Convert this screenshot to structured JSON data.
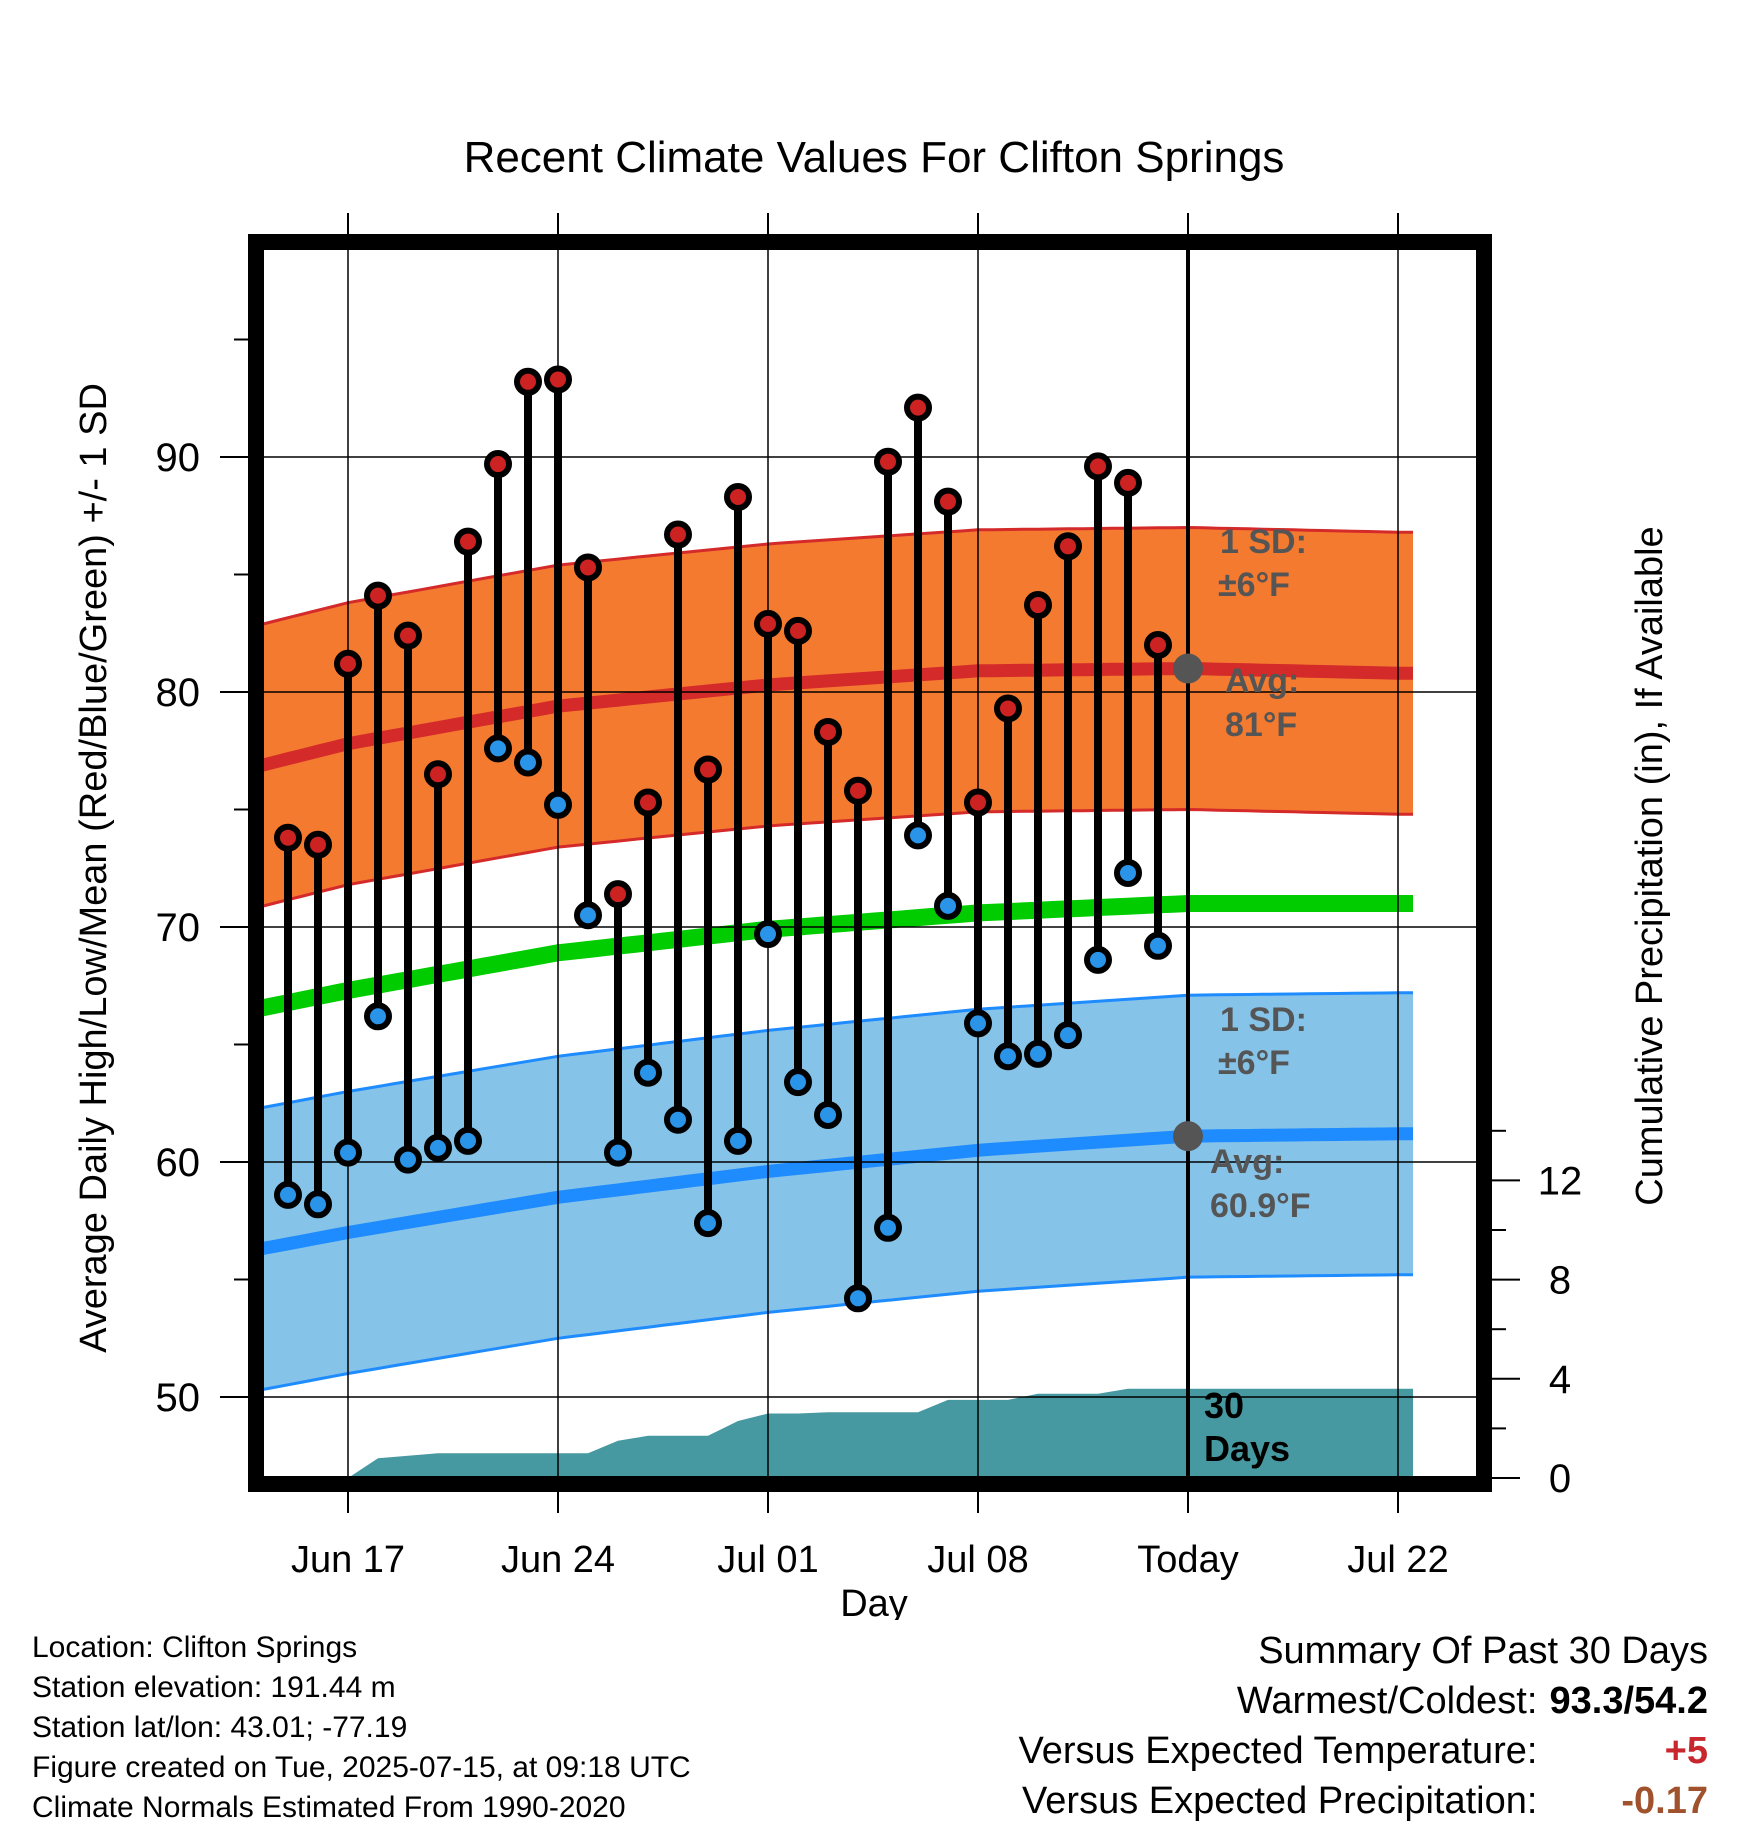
{
  "chart_data": {
    "type": "line",
    "title": "Recent Climate Values For Clifton Springs",
    "xlabel": "Day",
    "ylabel": "Average Daily High/Low/Mean (Red/Blue/Green) +/- 1 SD",
    "y2label": "Cumulative Precipitation (in), If Available",
    "x_day_range": [
      -33.5,
      7.5
    ],
    "ylim": [
      46,
      98
    ],
    "y2lim": [
      0,
      24
    ],
    "x_ticks": [
      {
        "day": -28,
        "label": "Jun 17"
      },
      {
        "day": -21,
        "label": "Jun 24"
      },
      {
        "day": -14,
        "label": "Jul 01"
      },
      {
        "day": -7,
        "label": "Jul 08"
      },
      {
        "day": 0,
        "label": "Today"
      },
      {
        "day": 7,
        "label": "Jul 22"
      }
    ],
    "y_ticks": [
      50,
      60,
      70,
      80,
      90
    ],
    "y2_ticks": [
      0,
      4,
      8,
      12
    ],
    "grid": true,
    "normals": {
      "days": [
        -33,
        -28,
        -21,
        -14,
        -7,
        0,
        7
      ],
      "high_mean": [
        76.2,
        77.8,
        79.4,
        80.3,
        80.9,
        81.0,
        80.8
      ],
      "high_sd": 6,
      "mean": [
        66.0,
        67.3,
        68.9,
        69.9,
        70.6,
        71.0,
        71.0
      ],
      "low_mean": [
        55.8,
        57.0,
        58.5,
        59.6,
        60.5,
        61.1,
        61.2
      ],
      "low_sd": 6
    },
    "series": [
      {
        "name": "High",
        "days": [
          -30,
          -29,
          -28,
          -27,
          -26,
          -25,
          -24,
          -23,
          -22,
          -21,
          -20,
          -19,
          -18,
          -17,
          -16,
          -15,
          -14,
          -13,
          -12,
          -11,
          -10,
          -9,
          -8,
          -7,
          -6,
          -5,
          -4,
          -3,
          -2,
          -1
        ],
        "values": [
          73.8,
          73.5,
          81.2,
          84.1,
          82.4,
          76.5,
          86.4,
          89.7,
          93.2,
          93.3,
          85.3,
          71.4,
          75.3,
          86.7,
          76.7,
          88.3,
          82.9,
          82.6,
          78.3,
          75.8,
          89.8,
          92.1,
          88.1,
          75.3,
          79.3,
          83.7,
          86.2,
          89.6,
          88.9,
          82.0
        ]
      },
      {
        "name": "Low",
        "days": [
          -30,
          -29,
          -28,
          -27,
          -26,
          -25,
          -24,
          -23,
          -22,
          -21,
          -20,
          -19,
          -18,
          -17,
          -16,
          -15,
          -14,
          -13,
          -12,
          -11,
          -10,
          -9,
          -8,
          -7,
          -6,
          -5,
          -4,
          -3,
          -2,
          -1
        ],
        "values": [
          58.6,
          58.2,
          60.4,
          66.2,
          60.1,
          60.6,
          60.9,
          77.6,
          77.0,
          75.2,
          70.5,
          60.4,
          63.8,
          61.8,
          57.4,
          60.9,
          69.7,
          63.4,
          62.0,
          54.2,
          57.2,
          73.9,
          70.9,
          65.9,
          64.5,
          64.6,
          65.4,
          68.6,
          72.3,
          69.2
        ]
      }
    ],
    "precipitation": {
      "days": [
        -28,
        -27,
        -26,
        -25,
        -24,
        -23,
        -22,
        -21,
        -20,
        -19,
        -18,
        -17,
        -16,
        -15,
        -14,
        -13,
        -12,
        -11,
        -10,
        -9,
        -8,
        -7,
        -6,
        -5,
        -4,
        -3,
        -2,
        -1,
        0,
        7.5
      ],
      "cumulative": [
        0,
        0.8,
        0.9,
        1.0,
        1.0,
        1.0,
        1.0,
        1.0,
        1.0,
        1.5,
        1.7,
        1.7,
        1.7,
        2.3,
        2.6,
        2.6,
        2.65,
        2.65,
        2.65,
        2.65,
        3.15,
        3.15,
        3.15,
        3.4,
        3.4,
        3.4,
        3.6,
        3.6,
        3.6,
        3.6
      ]
    },
    "annotations": {
      "high_sd_label": "1 SD:",
      "high_sd_value": "±6°F",
      "high_avg_label": "Avg:",
      "high_avg_value": "81°F",
      "low_sd_label": "1 SD:",
      "low_sd_value": "±6°F",
      "low_avg_label": "Avg:",
      "low_avg_value": "60.9°F",
      "days_label_1": "30",
      "days_label_2": "Days"
    },
    "colors": {
      "high_band": "#f47a30",
      "high_line": "#d42a2a",
      "mean_line": "#00cc00",
      "low_band": "#86c3e8",
      "low_line": "#1e8cff",
      "precip": "#4699a0",
      "high_dot": "#cc2222",
      "low_dot": "#2a94e8"
    }
  },
  "footer": {
    "location": "Location: Clifton Springs",
    "elevation": "Station elevation: 191.44 m",
    "latlon": "Station lat/lon: 43.01; -77.19",
    "created": "Figure created on Tue, 2025-07-15, at 09:18 UTC",
    "normals": "Climate Normals Estimated From 1990-2020"
  },
  "summary": {
    "title": "Summary Of Past 30 Days",
    "warm_cold_label": "Warmest/Coldest:",
    "warm_cold_value": "93.3/54.2",
    "temp_label": "Versus Expected Temperature:",
    "temp_value": "+5",
    "precip_label": "Versus Expected Precipitation:",
    "precip_value": "-0.17"
  }
}
